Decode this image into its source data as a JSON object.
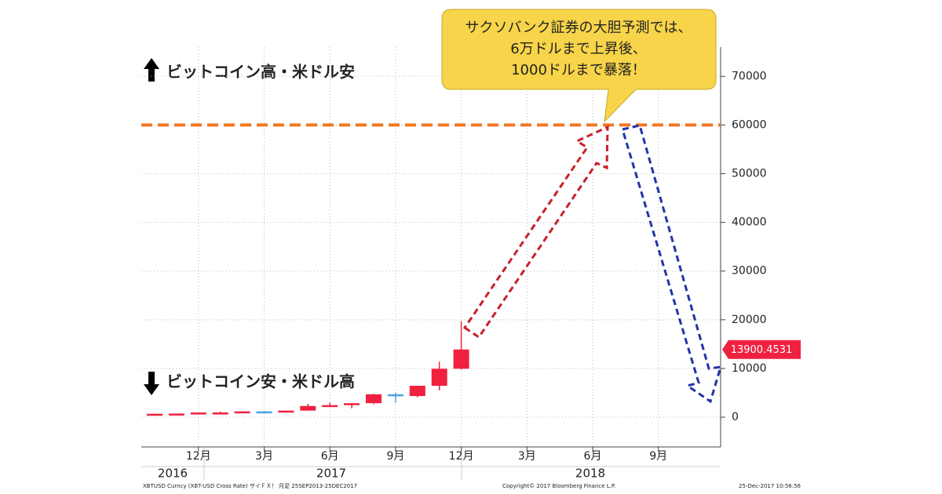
{
  "chart_data": {
    "type": "candlestick",
    "title_up": "ビットコイン高・米ドル安",
    "title_down": "ビットコイン安・米ドル高",
    "callout": [
      "サクソバンク証券の大胆予測では、",
      "6万ドルまで上昇後、",
      "1000ドルまで暴落！"
    ],
    "categories": [
      null,
      null,
      "12月",
      null,
      null,
      "3月",
      null,
      null,
      "6月",
      null,
      null,
      "9月",
      null,
      null,
      "12月",
      null,
      null,
      "3月",
      null,
      null,
      "6月",
      null,
      null,
      "9月",
      null,
      null
    ],
    "years": [
      "2016",
      "2017",
      "2018"
    ],
    "open": [
      609,
      700,
      745,
      965,
      970,
      1190,
      1080,
      1350,
      2300,
      2480,
      2870,
      4700,
      4340,
      6450,
      9950,
      null,
      null,
      null,
      null,
      null,
      null,
      null,
      null,
      null,
      null,
      null
    ],
    "high": [
      740,
      755,
      975,
      1150,
      1200,
      1300,
      1350,
      2760,
      2980,
      2930,
      4800,
      5000,
      6470,
      11400,
      19700,
      null,
      null,
      null,
      null,
      null,
      null,
      null,
      null,
      null,
      null,
      null
    ],
    "low": [
      607,
      680,
      745,
      750,
      940,
      890,
      1080,
      1350,
      2100,
      1830,
      2690,
      2970,
      4100,
      5500,
      9800,
      null,
      null,
      null,
      null,
      null,
      null,
      null,
      null,
      null,
      null,
      null
    ],
    "close": [
      700,
      745,
      965,
      965,
      1190,
      1080,
      1350,
      2300,
      2480,
      2870,
      4700,
      4340,
      6450,
      9950,
      13900.4531,
      null,
      null,
      null,
      null,
      null,
      null,
      null,
      null,
      null,
      null,
      null
    ],
    "up_color": "#f0213f",
    "down_color": "#4aa3e0",
    "reference_line": {
      "value": 60000,
      "color": "#f07820"
    },
    "ylim": [
      -6000,
      75000
    ],
    "yticks": [
      0,
      10000,
      20000,
      30000,
      40000,
      50000,
      60000,
      70000
    ],
    "grid": true,
    "footer": [
      "XBTUSD Curncy (XBT-USD Cross Rate) ザイＦＸ！ 月足 25SEP2013-25DEC2017",
      "Copyright© 2017 Bloomberg Finance L.P.",
      "25-Dec-2017 10:56:56"
    ]
  }
}
